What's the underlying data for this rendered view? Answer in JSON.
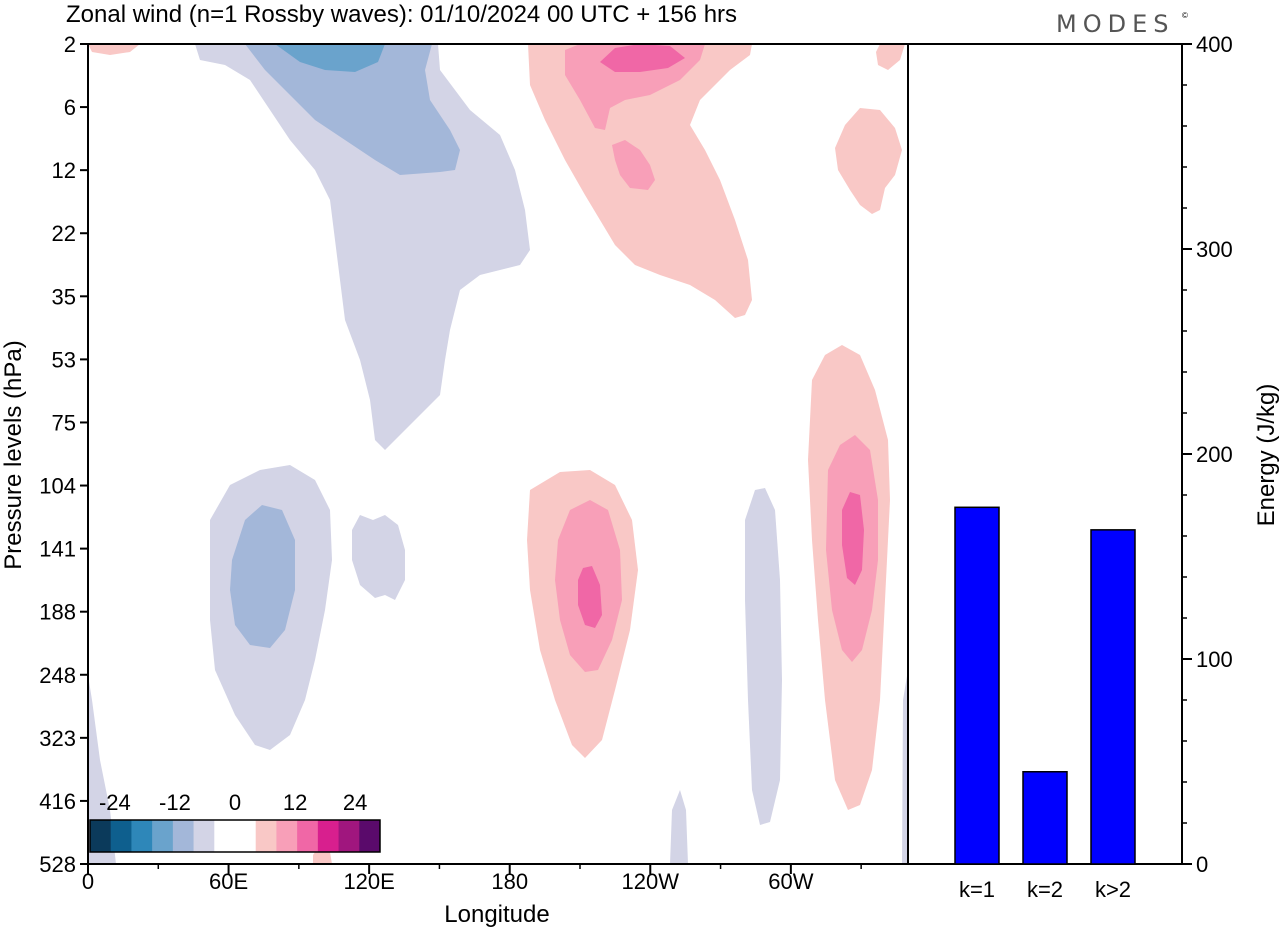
{
  "title": "Zonal wind (n=1 Rossby waves):  01/10/2024  00 UTC  + 156 hrs",
  "brand": "MODES",
  "brand_mark": "©",
  "colors": {
    "bar": "#0000ff",
    "blue_1": "#d3d4e6",
    "blue_2": "#a3b7d9",
    "blue_3": "#6aa3cc",
    "pink_1": "#f9c8c6",
    "pink_2": "#f89fb8",
    "pink_3": "#f067a6"
  },
  "chart_data": [
    {
      "type": "heatmap",
      "title": "Zonal wind (n=1 Rossby waves):  01/10/2024  00 UTC  + 156 hrs",
      "xlabel": "Longitude",
      "ylabel": "Pressure levels (hPa)",
      "x_ticks": [
        "0",
        "60E",
        "120E",
        "180",
        "120W",
        "60W"
      ],
      "x_range_deg": [
        0,
        350
      ],
      "y_ticks": [
        "2",
        "6",
        "12",
        "22",
        "35",
        "53",
        "75",
        "104",
        "141",
        "188",
        "248",
        "323",
        "416",
        "528"
      ],
      "y_scale": "pressure levels, top 2 hPa to bottom 528 hPa",
      "colorbar": {
        "tick_labels": [
          "-24",
          "-12",
          "0",
          "12",
          "24"
        ],
        "colors": [
          "#0b3a5b",
          "#0e5f8e",
          "#2e87b9",
          "#6aa3cc",
          "#a3b7d9",
          "#d3d4e6",
          "#ffffff",
          "#ffffff",
          "#f9c8c6",
          "#f89fb8",
          "#f067a6",
          "#d81f8e",
          "#a0167e",
          "#5a0a6b"
        ]
      },
      "features": [
        {
          "sign": "negative",
          "level": -4,
          "lon": 75,
          "pressure": 170
        },
        {
          "sign": "negative",
          "level": -8,
          "lon": 75,
          "pressure": 160
        },
        {
          "sign": "negative",
          "level": -4,
          "lon": 125,
          "pressure": 150
        },
        {
          "sign": "negative",
          "level": -4,
          "lon": 290,
          "pressure": 200
        },
        {
          "sign": "negative",
          "level": -12,
          "lon": 100,
          "pressure": 2
        },
        {
          "sign": "positive",
          "level": 4,
          "lon": 205,
          "pressure": 170
        },
        {
          "sign": "positive",
          "level": 12,
          "lon": 215,
          "pressure": 150
        },
        {
          "sign": "positive",
          "level": 4,
          "lon": 325,
          "pressure": 150
        },
        {
          "sign": "positive",
          "level": 12,
          "lon": 328,
          "pressure": 130
        },
        {
          "sign": "positive",
          "level": 12,
          "lon": 230,
          "pressure": 3
        }
      ]
    },
    {
      "type": "bar",
      "categories": [
        "k=1",
        "k=2",
        "k>2"
      ],
      "values": [
        174,
        45,
        163
      ],
      "ylabel": "Energy (J/kg)",
      "ylim": [
        0,
        400
      ],
      "y_ticks": [
        "0",
        "100",
        "200",
        "300",
        "400"
      ]
    }
  ]
}
